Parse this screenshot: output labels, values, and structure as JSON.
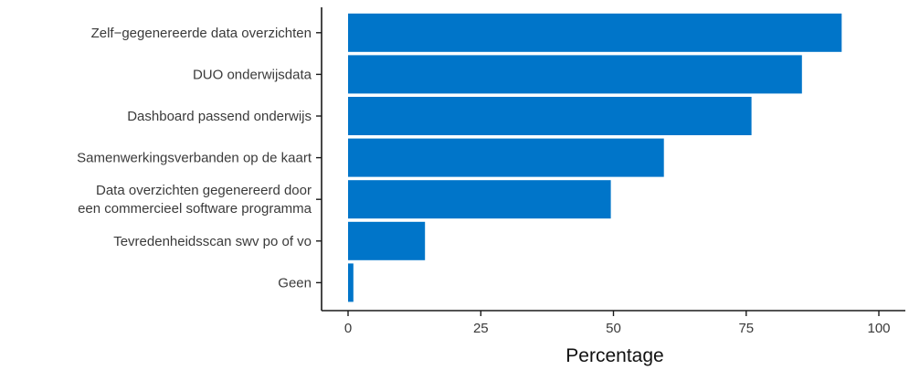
{
  "chart_data": {
    "type": "bar",
    "orientation": "horizontal",
    "categories": [
      [
        "Zelf−gegenereerde data overzichten"
      ],
      [
        "DUO onderwijsdata"
      ],
      [
        "Dashboard passend onderwijs"
      ],
      [
        "Samenwerkingsverbanden op de kaart"
      ],
      [
        "Data overzichten gegenereerd door",
        "een commercieel software programma"
      ],
      [
        "Tevredenheidsscan swv po of vo"
      ],
      [
        "Geen"
      ]
    ],
    "values": [
      93,
      85.5,
      76,
      59.5,
      49.5,
      14.5,
      1
    ],
    "xlabel": "Percentage",
    "ylabel": "",
    "xlim": [
      0,
      100
    ],
    "xticks": [
      "0",
      "25",
      "50",
      "75",
      "100"
    ],
    "bar_color": "#0075c9",
    "axis_color": "#1a1a1a",
    "grid": false,
    "legend": "none"
  }
}
